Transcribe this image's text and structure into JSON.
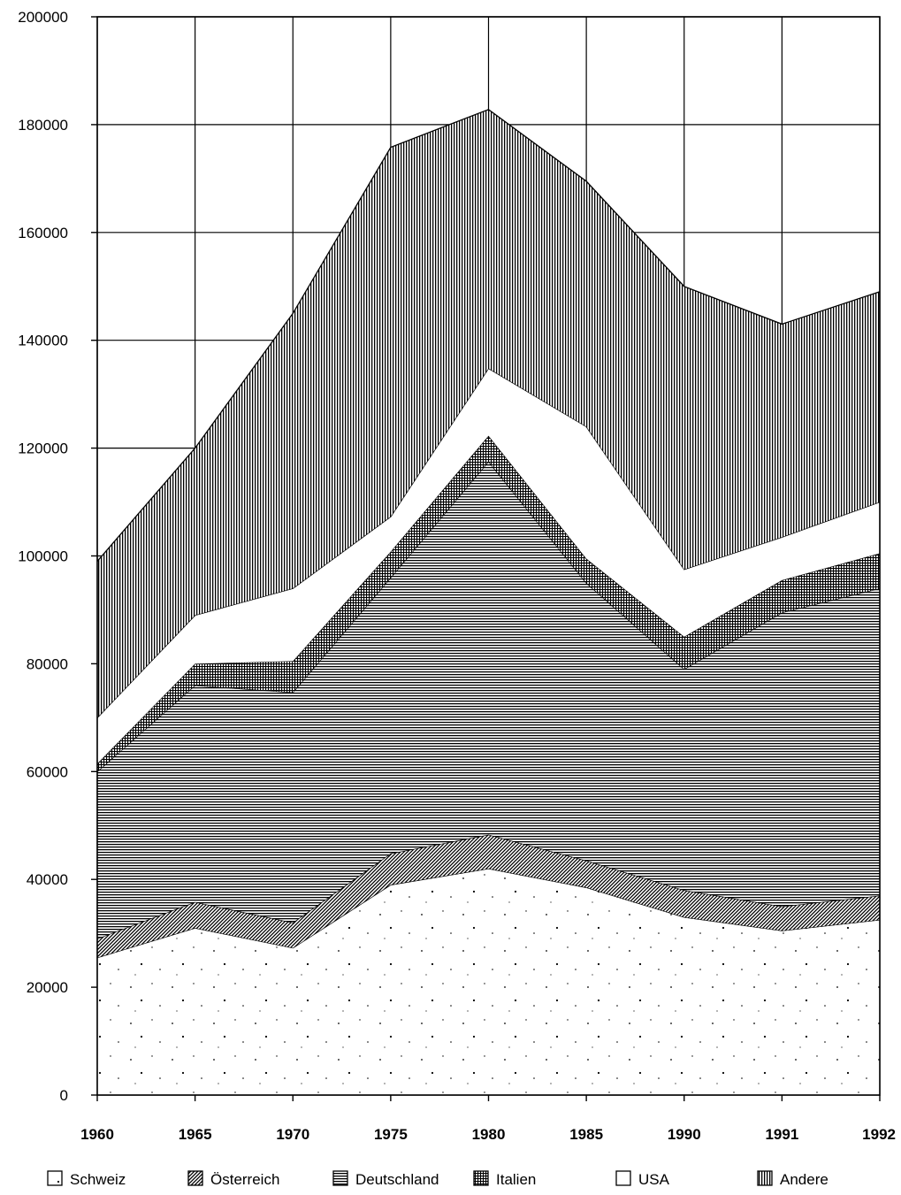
{
  "chart_data": {
    "type": "area",
    "stacked": true,
    "title": "",
    "xlabel": "",
    "ylabel": "",
    "categories": [
      "1960",
      "1965",
      "1970",
      "1975",
      "1980",
      "1985",
      "1990",
      "1991",
      "1992"
    ],
    "ylim": [
      0,
      200000
    ],
    "yticks": [
      "0",
      "20000",
      "40000",
      "60000",
      "80000",
      "100000",
      "120000",
      "140000",
      "160000",
      "180000",
      "200000"
    ],
    "grid": true,
    "legend_position": "bottom",
    "series": [
      {
        "name": "Schweiz",
        "pattern": "speckle",
        "values": [
          25500,
          31000,
          27300,
          39000,
          42000,
          38500,
          33000,
          30500,
          32500
        ]
      },
      {
        "name": "Österreich",
        "pattern": "diagonal",
        "values": [
          3500,
          4800,
          4700,
          5800,
          6300,
          5000,
          5000,
          4500,
          4500
        ]
      },
      {
        "name": "Deutschland",
        "pattern": "horizontal",
        "values": [
          31000,
          40200,
          42700,
          51200,
          69200,
          51500,
          41000,
          54500,
          57000
        ]
      },
      {
        "name": "Italien",
        "pattern": "crosshatch",
        "values": [
          1500,
          4000,
          5800,
          4800,
          4800,
          4500,
          6000,
          6000,
          6500
        ]
      },
      {
        "name": "USA",
        "pattern": "blank",
        "values": [
          8500,
          9000,
          13500,
          6500,
          12500,
          24500,
          12500,
          8000,
          9500
        ]
      },
      {
        "name": "Andere",
        "pattern": "vertical",
        "values": [
          29000,
          31000,
          51000,
          68500,
          48000,
          45500,
          52500,
          39500,
          39000
        ]
      }
    ]
  }
}
